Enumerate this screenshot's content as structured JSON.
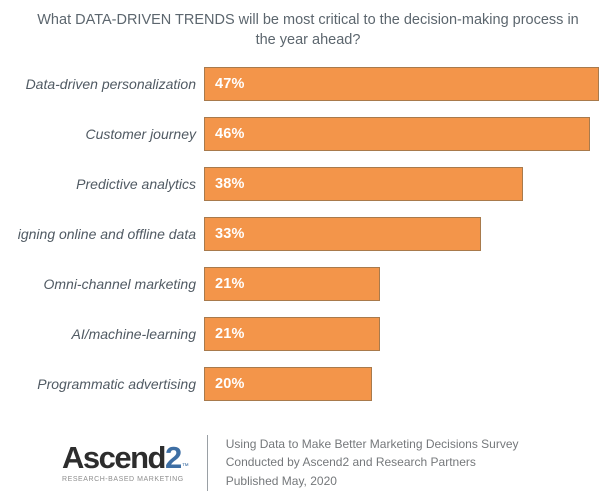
{
  "title": "What DATA-DRIVEN TRENDS will be most critical to the decision-making process in the year ahead?",
  "chart_data": {
    "type": "bar",
    "orientation": "horizontal",
    "title": "What DATA-DRIVEN TRENDS will be most critical to the decision-making process in the year ahead?",
    "categories": [
      "Data-driven personalization",
      "Customer journey",
      "Predictive analytics",
      "igning online and offline data",
      "Omni-channel marketing",
      "AI/machine-learning",
      "Programmatic advertising"
    ],
    "values": [
      47,
      46,
      38,
      33,
      21,
      21,
      20
    ],
    "value_labels": [
      "47%",
      "46%",
      "38%",
      "33%",
      "21%",
      "21%",
      "20%"
    ],
    "xlim": [
      0,
      49
    ],
    "grid": false,
    "legend": false,
    "bar_color": "#F3954A",
    "bar_border_color": "#A87A4C",
    "value_label_color": "#FFFFFF"
  },
  "footer": {
    "logo_word": "Ascend",
    "logo_digit": "2",
    "logo_tm": "™",
    "logo_tagline": "RESEARCH-BASED MARKETING",
    "lines": [
      "Using Data to Make Better Marketing Decisions Survey",
      "Conducted  by Ascend2 and Research Partners",
      "Published May, 2020"
    ]
  },
  "colors": {
    "title_text": "#5C666E",
    "category_label_text": "#505A63",
    "footer_text": "#75787B",
    "logo_word": "#2D2D2D",
    "logo_digit": "#3E6FA4",
    "divider": "#9AA0A5"
  }
}
